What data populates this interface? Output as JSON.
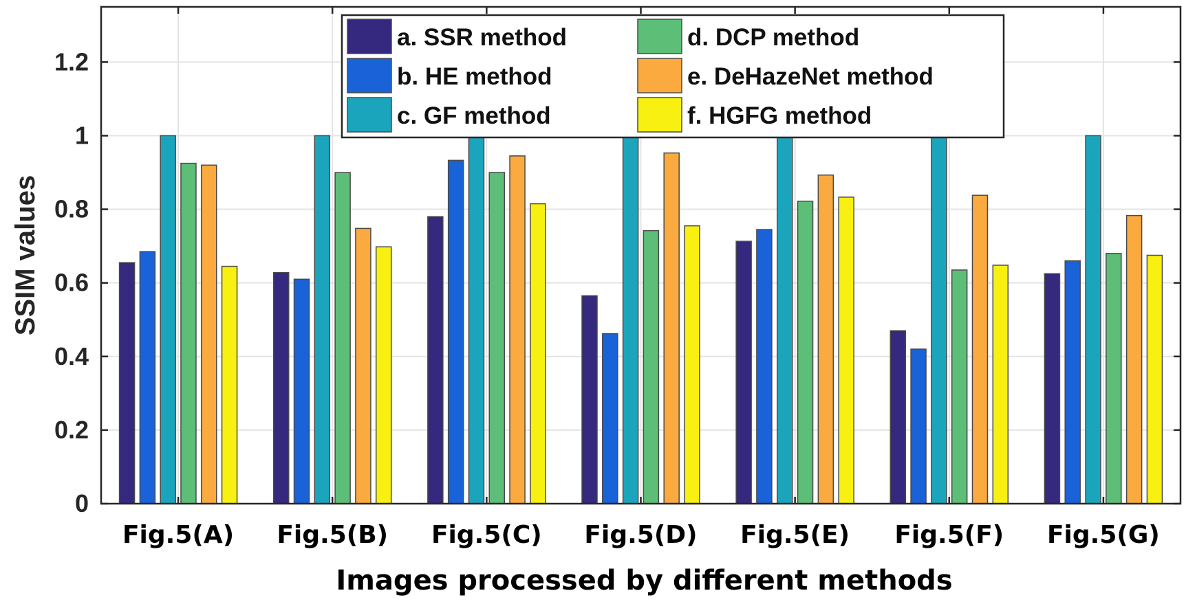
{
  "chart_data": {
    "type": "bar",
    "title": "",
    "xlabel": "Images processed by different methods",
    "ylabel": "SSIM values",
    "ylim": [
      0,
      1.35
    ],
    "yticks": [
      0,
      0.2,
      0.4,
      0.6,
      0.8,
      1,
      1.2
    ],
    "ytick_labels": [
      "0",
      "0.2",
      "0.4",
      "0.6",
      "0.8",
      "1",
      "1.2"
    ],
    "grid": true,
    "legend_position": "top",
    "categories": [
      "Fig.5(A)",
      "Fig.5(B)",
      "Fig.5(C)",
      "Fig.5(D)",
      "Fig.5(E)",
      "Fig.5(F)",
      "Fig.5(G)"
    ],
    "series": [
      {
        "name": "a. SSR method",
        "color": "#34287f",
        "values": [
          0.655,
          0.628,
          0.78,
          0.565,
          0.713,
          0.47,
          0.625
        ]
      },
      {
        "name": "b. HE method",
        "color": "#1a62d8",
        "values": [
          0.685,
          0.61,
          0.933,
          0.462,
          0.745,
          0.42,
          0.66
        ]
      },
      {
        "name": "c. GF method",
        "color": "#1ba5bd",
        "values": [
          1.0,
          1.0,
          1.0,
          1.0,
          1.0,
          1.0,
          1.0
        ]
      },
      {
        "name": "d. DCP method",
        "color": "#5dbe78",
        "values": [
          0.925,
          0.9,
          0.9,
          0.742,
          0.822,
          0.635,
          0.68
        ]
      },
      {
        "name": "e. DeHazeNet method",
        "color": "#fbaa3f",
        "values": [
          0.92,
          0.748,
          0.945,
          0.953,
          0.893,
          0.838,
          0.783
        ]
      },
      {
        "name": "f. HGFG method",
        "color": "#f8f011",
        "values": [
          0.645,
          0.698,
          0.815,
          0.755,
          0.833,
          0.648,
          0.675
        ]
      }
    ]
  }
}
